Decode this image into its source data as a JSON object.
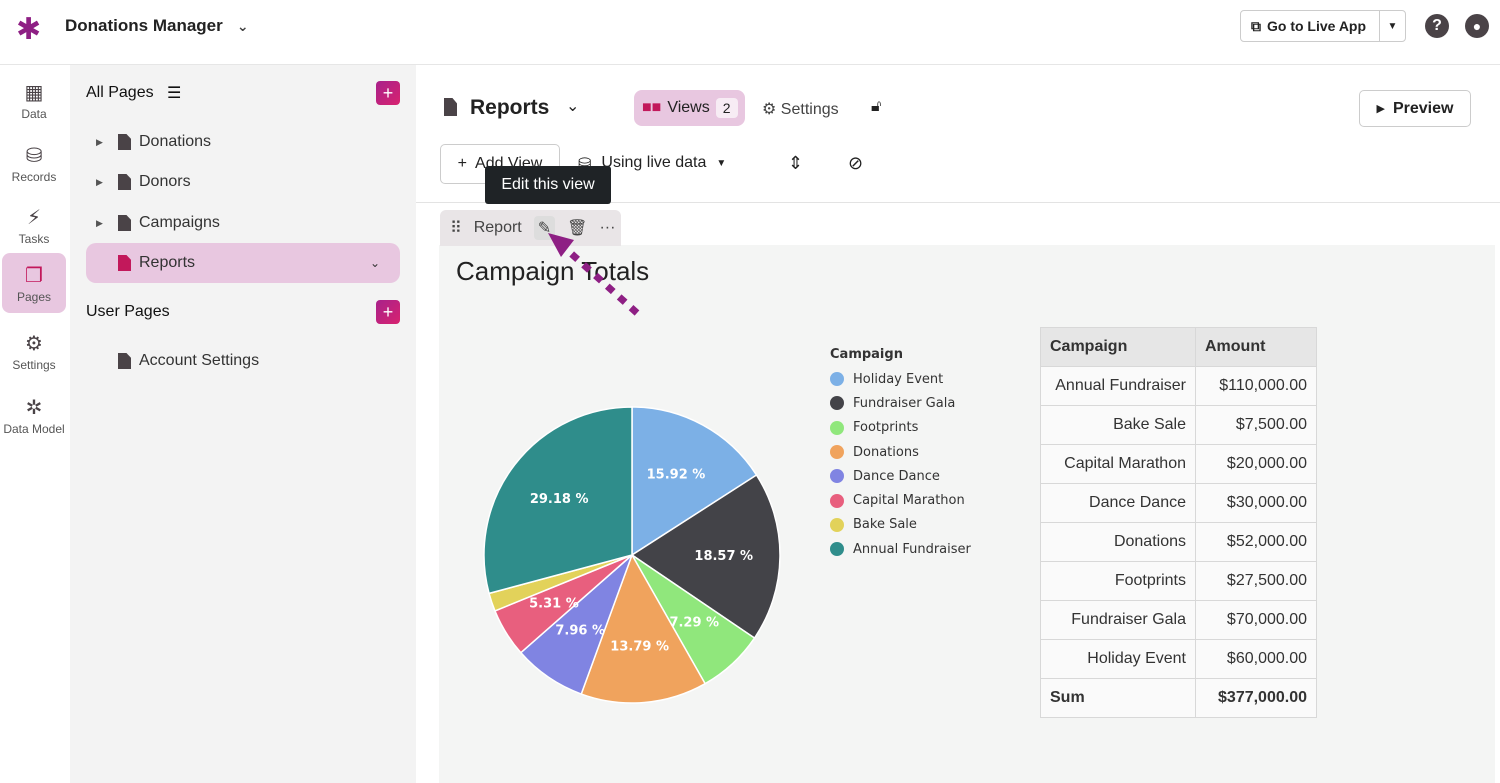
{
  "topbar": {
    "app_title": "Donations Manager",
    "go_live_label": "Go to Live App"
  },
  "rail": [
    {
      "label": "Data",
      "icon": "table-icon"
    },
    {
      "label": "Records",
      "icon": "database-icon"
    },
    {
      "label": "Tasks",
      "icon": "bolt-icon"
    },
    {
      "label": "Pages",
      "icon": "pages-icon",
      "active": true
    },
    {
      "label": "Settings",
      "icon": "gear-icon"
    },
    {
      "label": "Data Model",
      "icon": "graph-icon"
    }
  ],
  "pages_panel": {
    "all_pages_title": "All Pages",
    "user_pages_title": "User Pages",
    "items": [
      {
        "label": "Donations"
      },
      {
        "label": "Donors"
      },
      {
        "label": "Campaigns"
      },
      {
        "label": "Reports",
        "active": true
      }
    ],
    "user_items": [
      {
        "label": "Account Settings"
      }
    ]
  },
  "header": {
    "page_title": "Reports",
    "views_label": "Views",
    "views_count": "2",
    "settings_label": "Settings",
    "preview_label": "Preview"
  },
  "toolbar": {
    "add_view_label": "Add View",
    "data_source_label": "Using live data"
  },
  "tooltip": "Edit this view",
  "view_tab": {
    "label": "Report"
  },
  "report": {
    "title": "Campaign Totals"
  },
  "chart_data": {
    "type": "pie",
    "legend_title": "Campaign",
    "legend_position": "right",
    "categories": [
      "Holiday Event",
      "Fundraiser Gala",
      "Footprints",
      "Donations",
      "Dance Dance",
      "Capital Marathon",
      "Bake Sale",
      "Annual Fundraiser"
    ],
    "values": [
      60000,
      70000,
      27500,
      52000,
      30000,
      20000,
      7500,
      110000
    ],
    "labels": [
      "15.92 %",
      "18.57 %",
      "7.29 %",
      "13.79 %",
      "7.96 %",
      "5.31 %",
      "",
      "29.18 %"
    ],
    "colors": [
      "#7cb0e6",
      "#434348",
      "#90e77c",
      "#f0a35d",
      "#8084e2",
      "#e85f7e",
      "#e2d25a",
      "#2f8d8b"
    ]
  },
  "table": {
    "headers": [
      "Campaign",
      "Amount"
    ],
    "rows": [
      [
        "Annual Fundraiser",
        "$110,000.00"
      ],
      [
        "Bake Sale",
        "$7,500.00"
      ],
      [
        "Capital Marathon",
        "$20,000.00"
      ],
      [
        "Dance Dance",
        "$30,000.00"
      ],
      [
        "Donations",
        "$52,000.00"
      ],
      [
        "Footprints",
        "$27,500.00"
      ],
      [
        "Fundraiser Gala",
        "$70,000.00"
      ],
      [
        "Holiday Event",
        "$60,000.00"
      ]
    ],
    "sum_label": "Sum",
    "sum_value": "$377,000.00"
  },
  "colors": {
    "accent": "#c2185b",
    "active_bg": "#e8c7e0",
    "annotation": "#8e1f84"
  }
}
